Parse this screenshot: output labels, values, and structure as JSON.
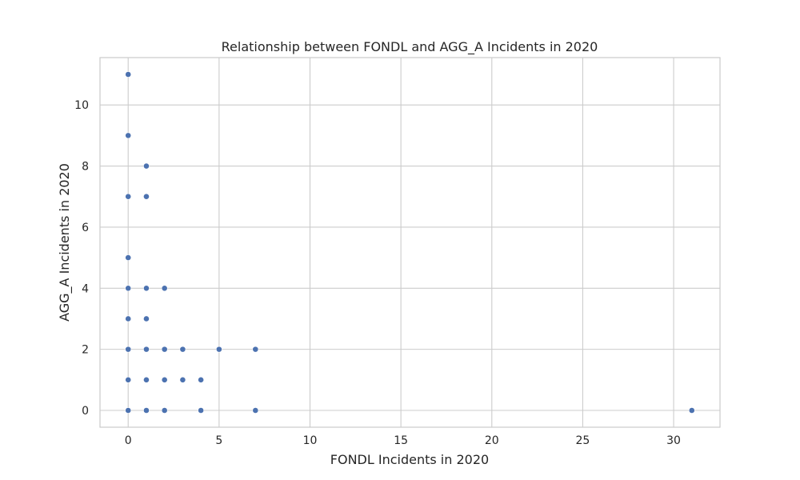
{
  "chart_data": {
    "type": "scatter",
    "title": "Relationship between FONDL and AGG_A Incidents in 2020",
    "xlabel": "FONDL Incidents in 2020",
    "ylabel": "AGG_A Incidents in 2020",
    "xlim": [
      -1.55,
      32.55
    ],
    "ylim": [
      -0.55,
      11.55
    ],
    "xticks": [
      0,
      5,
      10,
      15,
      20,
      25,
      30
    ],
    "yticks": [
      0,
      2,
      4,
      6,
      8,
      10
    ],
    "grid": true,
    "marker_color": "#4c72b0",
    "points": [
      {
        "x": 0,
        "y": 11
      },
      {
        "x": 0,
        "y": 9
      },
      {
        "x": 0,
        "y": 7
      },
      {
        "x": 0,
        "y": 5
      },
      {
        "x": 0,
        "y": 4
      },
      {
        "x": 0,
        "y": 3
      },
      {
        "x": 0,
        "y": 2
      },
      {
        "x": 0,
        "y": 1
      },
      {
        "x": 0,
        "y": 0
      },
      {
        "x": 1,
        "y": 8
      },
      {
        "x": 1,
        "y": 7
      },
      {
        "x": 1,
        "y": 4
      },
      {
        "x": 1,
        "y": 3
      },
      {
        "x": 1,
        "y": 2
      },
      {
        "x": 1,
        "y": 1
      },
      {
        "x": 1,
        "y": 0
      },
      {
        "x": 2,
        "y": 4
      },
      {
        "x": 2,
        "y": 2
      },
      {
        "x": 2,
        "y": 1
      },
      {
        "x": 2,
        "y": 0
      },
      {
        "x": 3,
        "y": 2
      },
      {
        "x": 3,
        "y": 1
      },
      {
        "x": 4,
        "y": 1
      },
      {
        "x": 4,
        "y": 0
      },
      {
        "x": 5,
        "y": 2
      },
      {
        "x": 7,
        "y": 2
      },
      {
        "x": 7,
        "y": 0
      },
      {
        "x": 31,
        "y": 0
      }
    ]
  }
}
